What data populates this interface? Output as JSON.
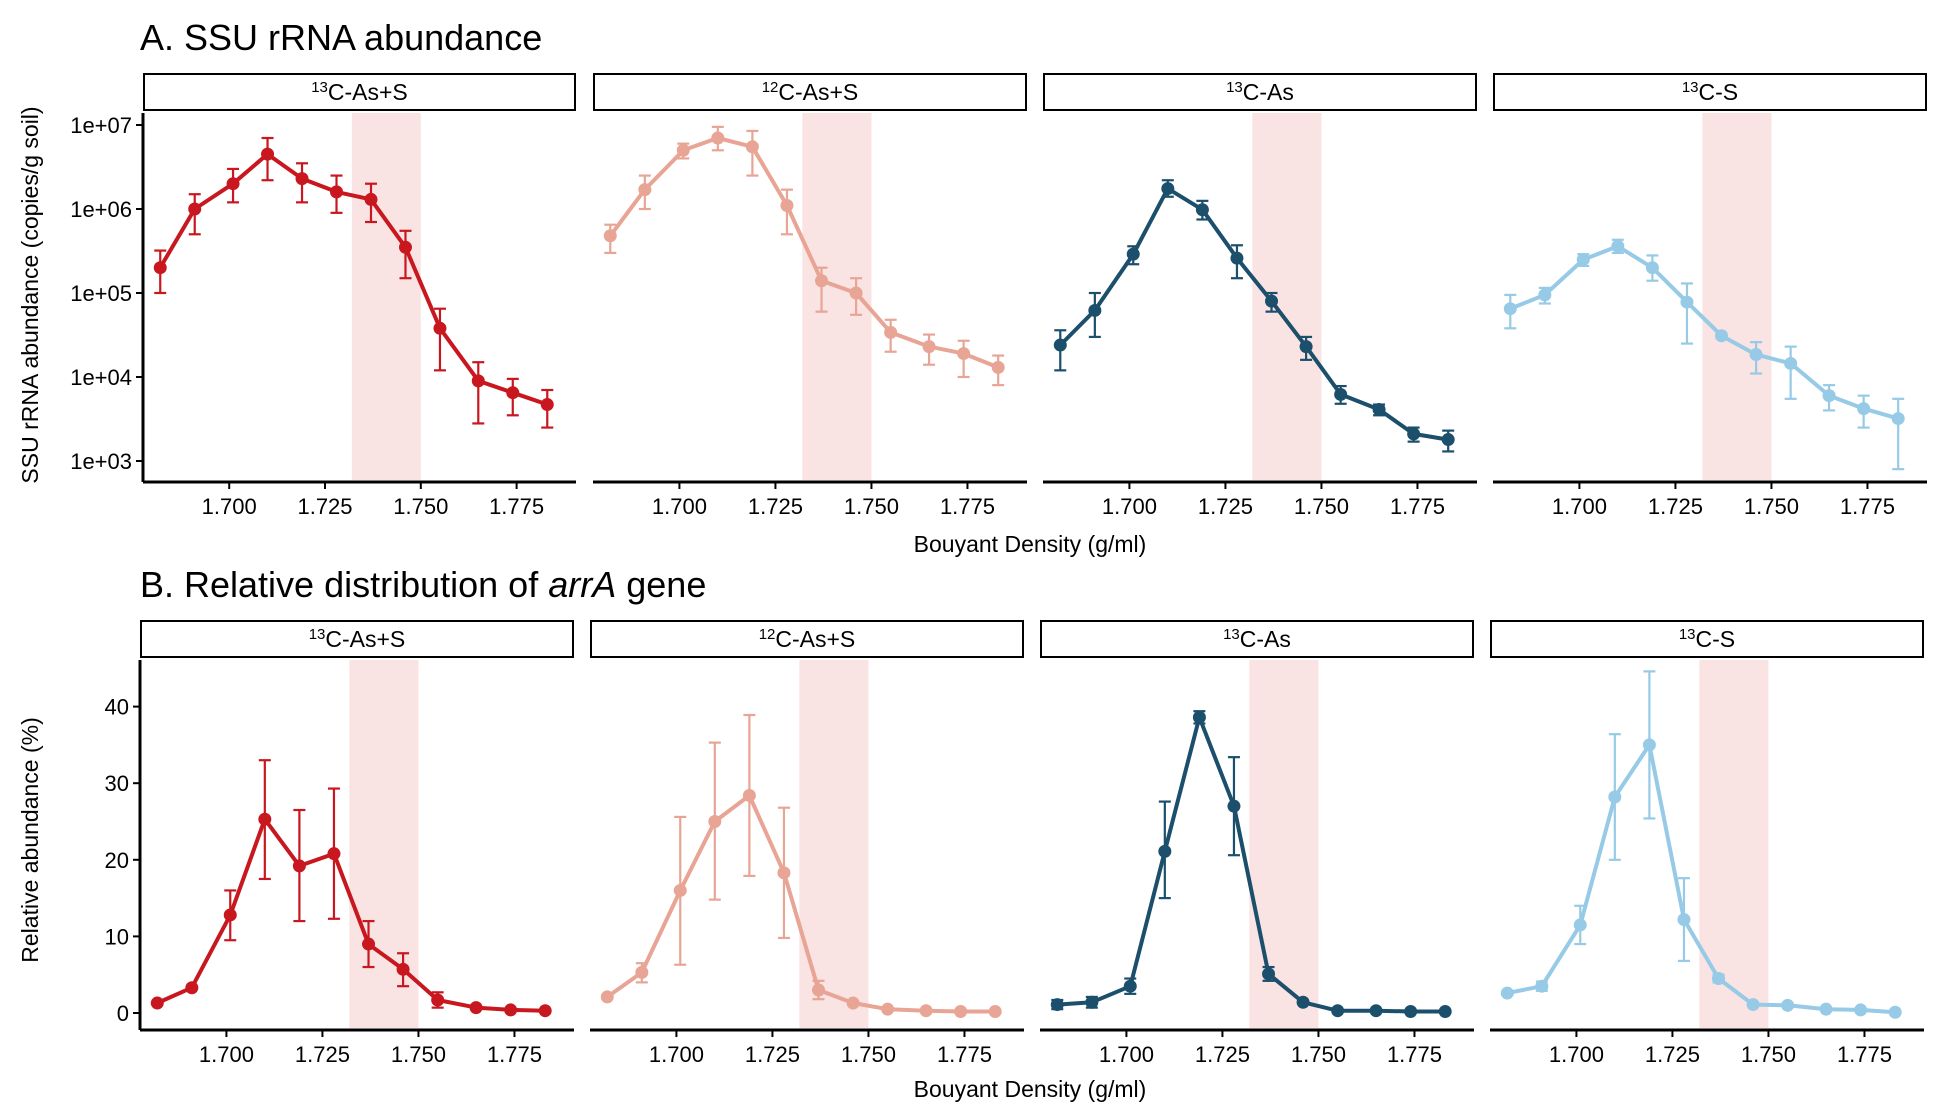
{
  "colors": {
    "13C-As+S": "#c8171f",
    "12C-As+S": "#e8a494",
    "13C-As": "#1b4f6b",
    "13C-S": "#96cae6",
    "highlight": "#f9e0e0"
  },
  "panelA": {
    "title": "A. SSU rRNA abundance",
    "ylabel": "SSU rRNA abundance (copies/g soil)",
    "xlabel": "Bouyant Density (g/ml)",
    "yticks": [
      "1e+03",
      "1e+04",
      "1e+05",
      "1e+06",
      "1e+07"
    ],
    "xticks": [
      "1.700",
      "1.725",
      "1.750",
      "1.775"
    ]
  },
  "panelB": {
    "title_prefix": "B. Relative distribution of",
    "title_italic": "arrA",
    "title_suffix": "gene",
    "ylabel": "Relative abundance (%)",
    "xlabel": "Bouyant Density (g/ml)",
    "yticks": [
      "0",
      "10",
      "20",
      "30",
      "40"
    ],
    "xticks": [
      "1.700",
      "1.725",
      "1.750",
      "1.775"
    ]
  },
  "chart_data": [
    {
      "type": "line",
      "panel": "A",
      "title": "A. SSU rRNA abundance",
      "xlabel": "Bouyant Density (g/ml)",
      "ylabel": "SSU rRNA abundance (copies/g soil)",
      "yscale": "log",
      "xlim": [
        1.6775,
        1.7905
      ],
      "ylim": [
        400,
        15000000
      ],
      "highlight_x": [
        1.732,
        1.75
      ],
      "facets": [
        {
          "label_sup": "13",
          "label": "C-As+S",
          "color_key": "13C-As+S",
          "x": [
            1.682,
            1.691,
            1.701,
            1.71,
            1.719,
            1.728,
            1.737,
            1.746,
            1.755,
            1.765,
            1.774,
            1.783
          ],
          "y": [
            200000,
            1000000,
            2000000,
            4500000,
            2300000,
            1600000,
            1300000,
            350000,
            38000,
            9000,
            6500,
            4700
          ],
          "err_low": [
            100000,
            500000,
            1200000,
            2200000,
            1200000,
            900000,
            700000,
            150000,
            12000,
            2800,
            3500,
            2500
          ],
          "err_high": [
            320000,
            1500000,
            3000000,
            7000000,
            3500000,
            2500000,
            2000000,
            550000,
            65000,
            15000,
            9500,
            7000
          ]
        },
        {
          "label_sup": "12",
          "label": "C-As+S",
          "color_key": "12C-As+S",
          "x": [
            1.682,
            1.691,
            1.701,
            1.71,
            1.719,
            1.728,
            1.737,
            1.746,
            1.755,
            1.765,
            1.774,
            1.783
          ],
          "y": [
            480000,
            1700000,
            5000000,
            7000000,
            5500000,
            1100000,
            140000,
            100000,
            34000,
            23000,
            19000,
            13000
          ],
          "err_low": [
            300000,
            1000000,
            4000000,
            5000000,
            2500000,
            500000,
            60000,
            55000,
            20000,
            14000,
            10000,
            8000
          ],
          "err_high": [
            650000,
            2500000,
            6000000,
            9500000,
            8500000,
            1700000,
            200000,
            150000,
            48000,
            32000,
            27000,
            18000
          ]
        },
        {
          "label_sup": "13",
          "label": "C-As",
          "color_key": "13C-As",
          "x": [
            1.682,
            1.691,
            1.701,
            1.71,
            1.719,
            1.728,
            1.737,
            1.746,
            1.755,
            1.765,
            1.774,
            1.783
          ],
          "y": [
            24000,
            62000,
            290000,
            1750000,
            980000,
            260000,
            80000,
            23000,
            6200,
            4100,
            2100,
            1800
          ],
          "err_low": [
            12000,
            30000,
            220000,
            1400000,
            750000,
            150000,
            60000,
            16000,
            4800,
            3500,
            1700,
            1300
          ],
          "err_high": [
            36000,
            100000,
            360000,
            2200000,
            1250000,
            370000,
            100000,
            30000,
            7800,
            4700,
            2500,
            2300
          ]
        },
        {
          "label_sup": "13",
          "label": "C-S",
          "color_key": "13C-S",
          "x": [
            1.682,
            1.691,
            1.701,
            1.71,
            1.719,
            1.728,
            1.737,
            1.746,
            1.755,
            1.765,
            1.774,
            1.783
          ],
          "y": [
            65000,
            95000,
            250000,
            360000,
            200000,
            78000,
            31000,
            18500,
            14500,
            6000,
            4200,
            3200
          ],
          "err_low": [
            38000,
            75000,
            210000,
            300000,
            140000,
            25000,
            29000,
            11000,
            5500,
            4000,
            2500,
            800
          ],
          "err_high": [
            95000,
            115000,
            290000,
            430000,
            280000,
            130000,
            33000,
            26000,
            23000,
            8000,
            6000,
            5500
          ]
        }
      ]
    },
    {
      "type": "line",
      "panel": "B",
      "title": "B. Relative distribution of arrA gene",
      "xlabel": "Bouyant Density (g/ml)",
      "ylabel": "Relative abundance (%)",
      "yscale": "linear",
      "xlim": [
        1.6775,
        1.7905
      ],
      "ylim": [
        -2.5,
        46
      ],
      "highlight_x": [
        1.732,
        1.75
      ],
      "facets": [
        {
          "label_sup": "13",
          "label": "C-As+S",
          "color_key": "13C-As+S",
          "x": [
            1.682,
            1.691,
            1.701,
            1.71,
            1.719,
            1.728,
            1.737,
            1.746,
            1.755,
            1.765,
            1.774,
            1.783
          ],
          "y": [
            1.3,
            3.3,
            12.8,
            25.3,
            19.2,
            20.8,
            9.0,
            5.7,
            1.7,
            0.7,
            0.4,
            0.3
          ],
          "err_low": [
            1.3,
            3.3,
            9.5,
            17.5,
            12.0,
            12.3,
            6.0,
            3.5,
            0.7,
            0.7,
            0.4,
            0.3
          ],
          "err_high": [
            1.3,
            3.3,
            16.0,
            33.0,
            26.5,
            29.3,
            12.0,
            7.8,
            2.7,
            0.7,
            0.4,
            0.3
          ]
        },
        {
          "label_sup": "12",
          "label": "C-As+S",
          "color_key": "12C-As+S",
          "x": [
            1.682,
            1.691,
            1.701,
            1.71,
            1.719,
            1.728,
            1.737,
            1.746,
            1.755,
            1.765,
            1.774,
            1.783
          ],
          "y": [
            2.1,
            5.3,
            16.0,
            25.0,
            28.4,
            18.3,
            3.0,
            1.3,
            0.5,
            0.3,
            0.2,
            0.2
          ],
          "err_low": [
            2.1,
            4.0,
            6.3,
            14.8,
            17.9,
            9.8,
            1.8,
            1.3,
            0.5,
            0.3,
            0.2,
            0.2
          ],
          "err_high": [
            2.1,
            6.5,
            25.6,
            35.3,
            38.9,
            26.8,
            4.2,
            1.3,
            0.5,
            0.3,
            0.2,
            0.2
          ]
        },
        {
          "label_sup": "13",
          "label": "C-As",
          "color_key": "13C-As",
          "x": [
            1.682,
            1.691,
            1.701,
            1.71,
            1.719,
            1.728,
            1.737,
            1.746,
            1.755,
            1.765,
            1.774,
            1.783
          ],
          "y": [
            1.1,
            1.4,
            3.5,
            21.1,
            38.6,
            27.0,
            5.1,
            1.4,
            0.3,
            0.3,
            0.2,
            0.2
          ],
          "err_low": [
            0.5,
            0.7,
            2.5,
            15.0,
            37.8,
            20.6,
            4.2,
            1.4,
            0.3,
            0.3,
            0.2,
            0.2
          ],
          "err_high": [
            1.7,
            2.1,
            4.5,
            27.6,
            39.4,
            33.4,
            6.0,
            1.4,
            0.3,
            0.3,
            0.2,
            0.2
          ]
        },
        {
          "label_sup": "13",
          "label": "C-S",
          "color_key": "13C-S",
          "x": [
            1.682,
            1.691,
            1.701,
            1.71,
            1.719,
            1.728,
            1.737,
            1.746,
            1.755,
            1.765,
            1.774,
            1.783
          ],
          "y": [
            2.6,
            3.5,
            11.5,
            28.2,
            35.0,
            12.2,
            4.5,
            1.1,
            1.0,
            0.5,
            0.4,
            0.1
          ],
          "err_low": [
            2.6,
            2.9,
            9.0,
            20.0,
            25.4,
            6.8,
            4.0,
            1.1,
            1.0,
            0.5,
            0.4,
            0.1
          ],
          "err_high": [
            2.6,
            4.1,
            14.0,
            36.4,
            44.6,
            17.6,
            5.0,
            1.1,
            1.0,
            0.5,
            0.4,
            0.1
          ]
        }
      ]
    }
  ]
}
